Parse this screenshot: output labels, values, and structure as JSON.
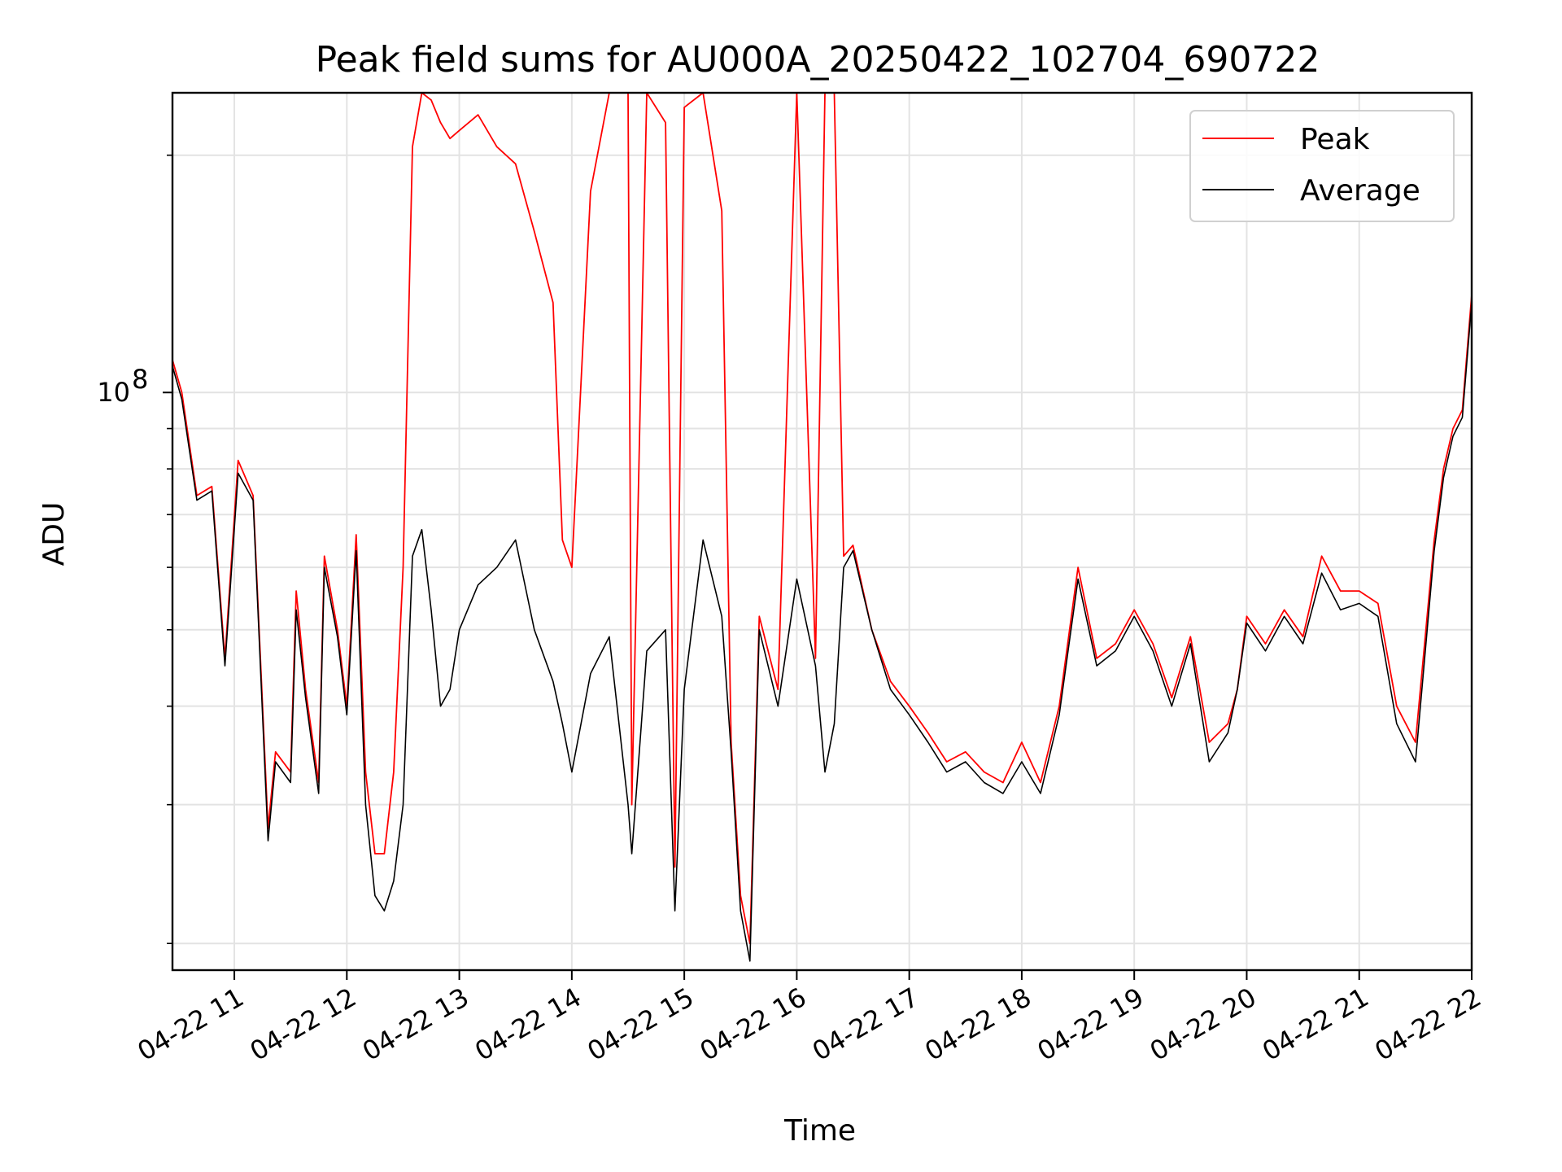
{
  "chart_data": {
    "type": "line",
    "title": "Peak field sums for AU000A_20250422_102704_690722",
    "xlabel": "Time",
    "ylabel": "ADU",
    "y_scale": "log",
    "y_tick_labels": [
      {
        "value": 100000000,
        "label": "10",
        "exponent": "8"
      }
    ],
    "ylim": [
      18500000,
      240000000
    ],
    "xlim": [
      "04-22 10:27",
      "04-22 22:00"
    ],
    "x_tick_labels": [
      "04-22 11",
      "04-22 12",
      "04-22 13",
      "04-22 14",
      "04-22 15",
      "04-22 16",
      "04-22 17",
      "04-22 18",
      "04-22 19",
      "04-22 20",
      "04-22 21",
      "04-22 22"
    ],
    "x_tick_times": [
      "04-22 11:00",
      "04-22 12:00",
      "04-22 13:00",
      "04-22 14:00",
      "04-22 15:00",
      "04-22 16:00",
      "04-22 17:00",
      "04-22 18:00",
      "04-22 19:00",
      "04-22 20:00",
      "04-22 21:00",
      "04-22 22:00"
    ],
    "grid": true,
    "legend_position": "top-right",
    "series": [
      {
        "name": "Average",
        "color": "#000000",
        "x": [
          "04-22 10:27",
          "04-22 10:32",
          "04-22 10:40",
          "04-22 10:48",
          "04-22 10:55",
          "04-22 11:02",
          "04-22 11:10",
          "04-22 11:18",
          "04-22 11:22",
          "04-22 11:30",
          "04-22 11:33",
          "04-22 11:38",
          "04-22 11:45",
          "04-22 11:48",
          "04-22 11:55",
          "04-22 12:00",
          "04-22 12:05",
          "04-22 12:10",
          "04-22 12:15",
          "04-22 12:20",
          "04-22 12:25",
          "04-22 12:30",
          "04-22 12:35",
          "04-22 12:40",
          "04-22 12:45",
          "04-22 12:50",
          "04-22 12:55",
          "04-22 13:00",
          "04-22 13:10",
          "04-22 13:20",
          "04-22 13:30",
          "04-22 13:40",
          "04-22 13:50",
          "04-22 13:55",
          "04-22 14:00",
          "04-22 14:10",
          "04-22 14:20",
          "04-22 14:30",
          "04-22 14:32",
          "04-22 14:40",
          "04-22 14:50",
          "04-22 14:55",
          "04-22 15:00",
          "04-22 15:10",
          "04-22 15:20",
          "04-22 15:25",
          "04-22 15:30",
          "04-22 15:35",
          "04-22 15:40",
          "04-22 15:50",
          "04-22 16:00",
          "04-22 16:10",
          "04-22 16:15",
          "04-22 16:20",
          "04-22 16:25",
          "04-22 16:30",
          "04-22 16:40",
          "04-22 16:50",
          "04-22 17:00",
          "04-22 17:10",
          "04-22 17:20",
          "04-22 17:30",
          "04-22 17:40",
          "04-22 17:50",
          "04-22 18:00",
          "04-22 18:10",
          "04-22 18:20",
          "04-22 18:30",
          "04-22 18:40",
          "04-22 18:50",
          "04-22 19:00",
          "04-22 19:10",
          "04-22 19:20",
          "04-22 19:30",
          "04-22 19:40",
          "04-22 19:50",
          "04-22 19:55",
          "04-22 20:00",
          "04-22 20:10",
          "04-22 20:20",
          "04-22 20:30",
          "04-22 20:40",
          "04-22 20:50",
          "04-22 21:00",
          "04-22 21:10",
          "04-22 21:20",
          "04-22 21:30",
          "04-22 21:40",
          "04-22 21:45",
          "04-22 21:50",
          "04-22 21:55",
          "04-22 22:00"
        ],
        "y": [
          108000000,
          98000000,
          73000000,
          75000000,
          45000000,
          79000000,
          73000000,
          27000000,
          34000000,
          32000000,
          53000000,
          41000000,
          31000000,
          60000000,
          49000000,
          39000000,
          63000000,
          30000000,
          23000000,
          22000000,
          24000000,
          30000000,
          62000000,
          67000000,
          53000000,
          40000000,
          42000000,
          50000000,
          57000000,
          60000000,
          65000000,
          50000000,
          43000000,
          38000000,
          33000000,
          44000000,
          49000000,
          30000000,
          26000000,
          47000000,
          50000000,
          22000000,
          42000000,
          65000000,
          52000000,
          35000000,
          22000000,
          19000000,
          50000000,
          40000000,
          58000000,
          45000000,
          33000000,
          38000000,
          60000000,
          63000000,
          50000000,
          42000000,
          39000000,
          36000000,
          33000000,
          34000000,
          32000000,
          31000000,
          34000000,
          31000000,
          39000000,
          58000000,
          45000000,
          47000000,
          52000000,
          47000000,
          40000000,
          48000000,
          34000000,
          37000000,
          42000000,
          51000000,
          47000000,
          52000000,
          48000000,
          59000000,
          53000000,
          54000000,
          52000000,
          38000000,
          34000000,
          63000000,
          78000000,
          88000000,
          93000000,
          130000000
        ]
      },
      {
        "name": "Peak",
        "color": "#ff0000",
        "x": [
          "04-22 10:27",
          "04-22 10:32",
          "04-22 10:40",
          "04-22 10:48",
          "04-22 10:55",
          "04-22 11:02",
          "04-22 11:10",
          "04-22 11:18",
          "04-22 11:22",
          "04-22 11:30",
          "04-22 11:33",
          "04-22 11:38",
          "04-22 11:45",
          "04-22 11:48",
          "04-22 11:55",
          "04-22 12:00",
          "04-22 12:05",
          "04-22 12:10",
          "04-22 12:15",
          "04-22 12:20",
          "04-22 12:25",
          "04-22 12:30",
          "04-22 12:35",
          "04-22 12:40",
          "04-22 12:45",
          "04-22 12:50",
          "04-22 12:55",
          "04-22 13:00",
          "04-22 13:10",
          "04-22 13:20",
          "04-22 13:30",
          "04-22 13:40",
          "04-22 13:50",
          "04-22 13:55",
          "04-22 14:00",
          "04-22 14:10",
          "04-22 14:20",
          "04-22 14:30",
          "04-22 14:32",
          "04-22 14:40",
          "04-22 14:50",
          "04-22 14:55",
          "04-22 15:00",
          "04-22 15:10",
          "04-22 15:20",
          "04-22 15:25",
          "04-22 15:30",
          "04-22 15:35",
          "04-22 15:40",
          "04-22 15:50",
          "04-22 16:00",
          "04-22 16:10",
          "04-22 16:15",
          "04-22 16:20",
          "04-22 16:25",
          "04-22 16:30",
          "04-22 16:40",
          "04-22 16:50",
          "04-22 17:00",
          "04-22 17:10",
          "04-22 17:20",
          "04-22 17:30",
          "04-22 17:40",
          "04-22 17:50",
          "04-22 18:00",
          "04-22 18:10",
          "04-22 18:20",
          "04-22 18:30",
          "04-22 18:40",
          "04-22 18:50",
          "04-22 19:00",
          "04-22 19:10",
          "04-22 19:20",
          "04-22 19:30",
          "04-22 19:40",
          "04-22 19:50",
          "04-22 19:55",
          "04-22 20:00",
          "04-22 20:10",
          "04-22 20:20",
          "04-22 20:30",
          "04-22 20:40",
          "04-22 20:50",
          "04-22 21:00",
          "04-22 21:10",
          "04-22 21:20",
          "04-22 21:30",
          "04-22 21:40",
          "04-22 21:45",
          "04-22 21:50",
          "04-22 21:55",
          "04-22 22:00"
        ],
        "y": [
          110000000,
          100000000,
          74000000,
          76000000,
          46000000,
          82000000,
          74000000,
          28000000,
          35000000,
          33000000,
          56000000,
          42000000,
          32000000,
          62000000,
          50000000,
          40000000,
          66000000,
          33000000,
          26000000,
          26000000,
          33000000,
          60000000,
          205000000,
          240000000,
          235000000,
          220000000,
          210000000,
          215000000,
          225000000,
          205000000,
          195000000,
          160000000,
          130000000,
          65000000,
          60000000,
          180000000,
          240000000,
          240000000,
          30000000,
          240000000,
          220000000,
          25000000,
          230000000,
          240000000,
          170000000,
          36000000,
          23000000,
          20000000,
          52000000,
          42000000,
          240000000,
          46000000,
          240000000,
          240000000,
          62000000,
          64000000,
          50000000,
          43000000,
          40000000,
          37000000,
          34000000,
          35000000,
          33000000,
          32000000,
          36000000,
          32000000,
          40000000,
          60000000,
          46000000,
          48000000,
          53000000,
          48000000,
          41000000,
          49000000,
          36000000,
          38000000,
          42000000,
          52000000,
          48000000,
          53000000,
          49000000,
          62000000,
          56000000,
          56000000,
          54000000,
          40000000,
          36000000,
          65000000,
          80000000,
          90000000,
          95000000,
          133000000
        ]
      }
    ]
  }
}
